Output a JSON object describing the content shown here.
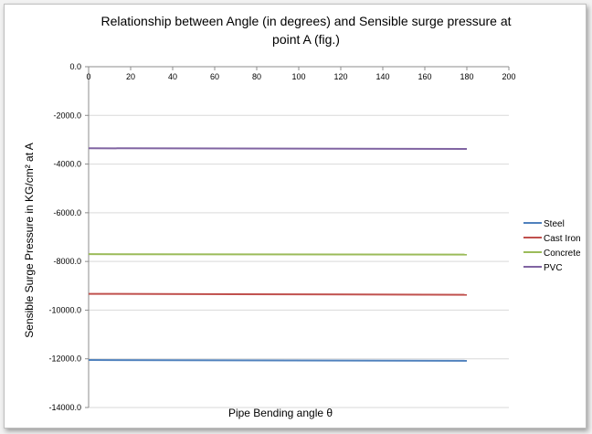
{
  "chart_data": {
    "type": "line",
    "title_line1": "Relationship between Angle (in degrees) and Sensible surge pressure at",
    "title_line2": "point A  (fig.)",
    "xlabel": "Pipe Bending angle θ",
    "ylabel": "Sensible Surge Pressure in KG/cm² at  A",
    "xlim": [
      0,
      200
    ],
    "ylim": [
      -14000,
      0
    ],
    "x_ticks": [
      "0",
      "20",
      "40",
      "60",
      "80",
      "100",
      "120",
      "140",
      "160",
      "180",
      "200"
    ],
    "y_ticks": [
      "0.0",
      "-2000.0",
      "-4000.0",
      "-6000.0",
      "-8000.0",
      "-10000.0",
      "-12000.0",
      "-14000.0"
    ],
    "x_tick_values": [
      0,
      20,
      40,
      60,
      80,
      100,
      120,
      140,
      160,
      180,
      200
    ],
    "y_tick_values": [
      0,
      -2000,
      -4000,
      -6000,
      -8000,
      -10000,
      -12000,
      -14000
    ],
    "grid": "horizontal",
    "legend_position": "right",
    "x": [
      0,
      180
    ],
    "series": [
      {
        "name": "Steel",
        "color": "#4f81bd",
        "values": [
          -12050,
          -12080
        ]
      },
      {
        "name": "Cast Iron",
        "color": "#c0504d",
        "values": [
          -9330,
          -9370
        ]
      },
      {
        "name": "Concrete",
        "color": "#9bbb59",
        "values": [
          -7700,
          -7720
        ]
      },
      {
        "name": "PVC",
        "color": "#8064a2",
        "values": [
          -3350,
          -3380
        ]
      }
    ]
  }
}
